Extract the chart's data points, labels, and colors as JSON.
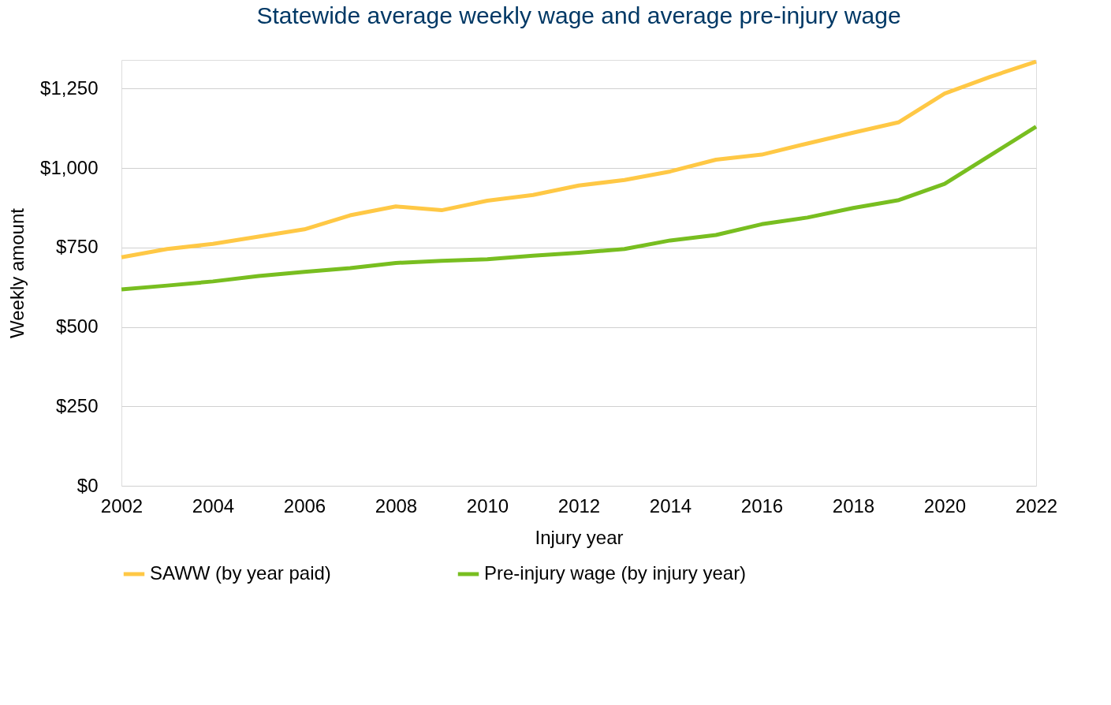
{
  "chart_data": {
    "type": "line",
    "title": "Statewide average weekly wage and average pre-injury wage",
    "xlabel": "Injury year",
    "ylabel": "Weekly amount",
    "x": [
      2002,
      2003,
      2004,
      2005,
      2006,
      2007,
      2008,
      2009,
      2010,
      2011,
      2012,
      2013,
      2014,
      2015,
      2016,
      2017,
      2018,
      2019,
      2020,
      2021,
      2022
    ],
    "series": [
      {
        "name": "SAWW (by year paid)",
        "color": "#ffc845",
        "values": [
          719,
          745,
          761,
          784,
          807,
          851,
          879,
          867,
          897,
          915,
          945,
          962,
          989,
          1026,
          1042,
          1077,
          1111,
          1144,
          1234,
          1287,
          1335
        ]
      },
      {
        "name": "Pre-injury wage (by injury year)",
        "color": "#78be20",
        "values": [
          618,
          630,
          643,
          660,
          673,
          685,
          701,
          708,
          713,
          724,
          733,
          745,
          772,
          789,
          823,
          844,
          874,
          899,
          950,
          1040,
          1130
        ]
      }
    ],
    "xlim": [
      2002,
      2022
    ],
    "xticks": [
      2002,
      2004,
      2006,
      2008,
      2010,
      2012,
      2014,
      2016,
      2018,
      2020,
      2022
    ],
    "ylim": [
      0,
      1340
    ],
    "yticks": [
      {
        "value": 0,
        "label": "$0"
      },
      {
        "value": 250,
        "label": "$250"
      },
      {
        "value": 500,
        "label": "$500"
      },
      {
        "value": 750,
        "label": "$750"
      },
      {
        "value": 1000,
        "label": "$1,000"
      },
      {
        "value": 1250,
        "label": "$1,250"
      }
    ],
    "grid": "y",
    "legend": "bottom",
    "marker": "none",
    "line_style": "solid"
  }
}
